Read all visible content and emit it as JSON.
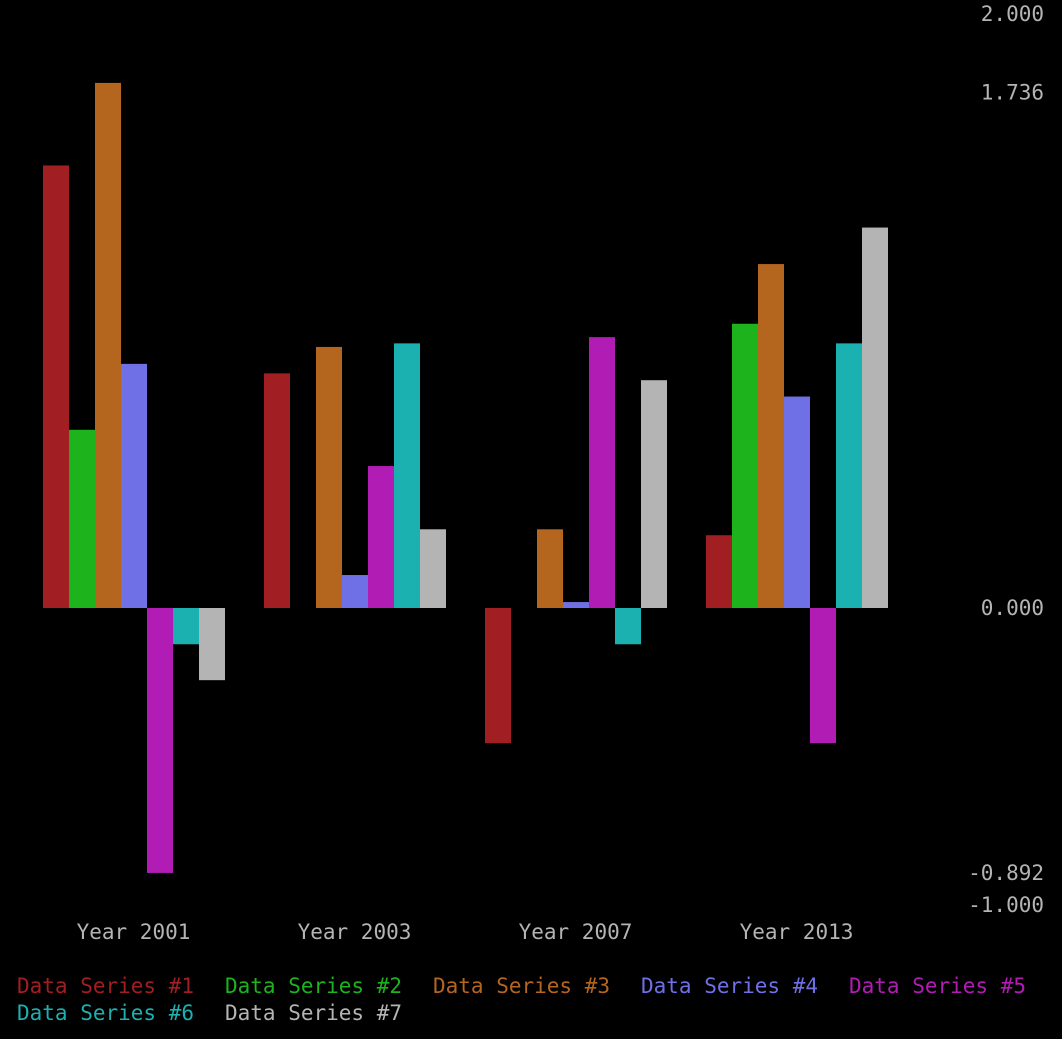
{
  "chart_data": {
    "type": "bar",
    "categories": [
      "Year 2001",
      "Year 2003",
      "Year 2007",
      "Year 2013"
    ],
    "ylim": [
      -1.0,
      2.0
    ],
    "yticks": [
      "2.000",
      "1.736",
      "0.000",
      "-0.892",
      "-1.000"
    ],
    "grid": false,
    "legend_position": "bottom",
    "series": [
      {
        "name": "Data Series #1",
        "color": "#a11e22",
        "values": [
          1.49,
          0.79,
          -0.455,
          0.245
        ]
      },
      {
        "name": "Data Series #2",
        "color": "#1cb31c",
        "values": [
          0.6,
          0.0,
          0.0,
          0.957
        ]
      },
      {
        "name": "Data Series #3",
        "color": "#b5661e",
        "values": [
          1.768,
          0.879,
          0.265,
          1.158
        ]
      },
      {
        "name": "Data Series #4",
        "color": "#7070e6",
        "values": [
          0.822,
          0.111,
          0.02,
          0.712
        ]
      },
      {
        "name": "Data Series #5",
        "color": "#b11cb5",
        "values": [
          -0.892,
          0.478,
          0.912,
          -0.455
        ]
      },
      {
        "name": "Data Series #6",
        "color": "#1cb1b1",
        "values": [
          -0.122,
          0.891,
          -0.122,
          0.891
        ]
      },
      {
        "name": "Data Series #7",
        "color": "#b4b4b4",
        "values": [
          -0.243,
          0.265,
          0.767,
          1.281
        ]
      }
    ]
  }
}
